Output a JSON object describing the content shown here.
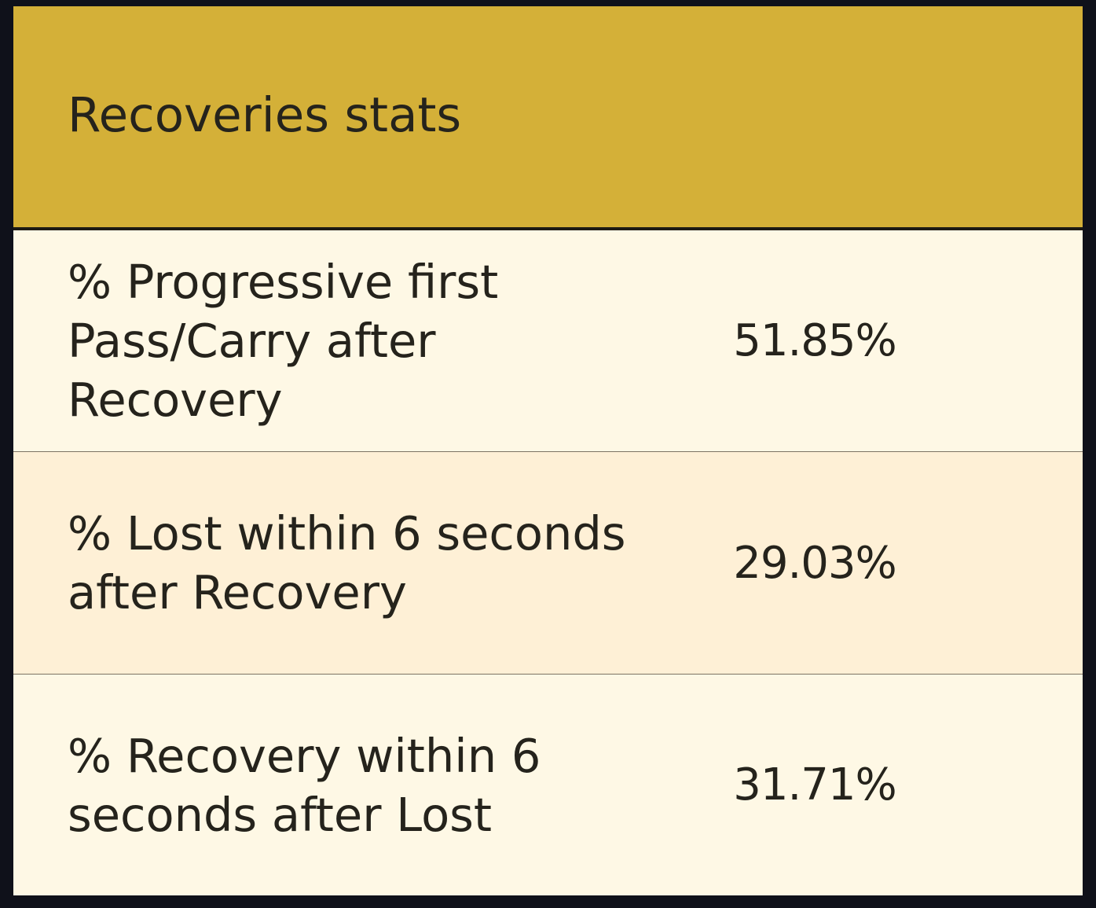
{
  "card": {
    "title": "Recoveries stats"
  },
  "rows": [
    {
      "label": "% Progressive first Pass/Carry after Recovery",
      "value": "51.85%"
    },
    {
      "label": "% Lost within 6 seconds after Recovery",
      "value": "29.03%"
    },
    {
      "label": "% Recovery within 6 seconds after Lost",
      "value": "31.71%"
    }
  ],
  "colors": {
    "background": "#0f111a",
    "header": "#d4b038",
    "row_light": "#fef8e5",
    "row_alt": "#fef0d6",
    "text": "#25231c"
  }
}
